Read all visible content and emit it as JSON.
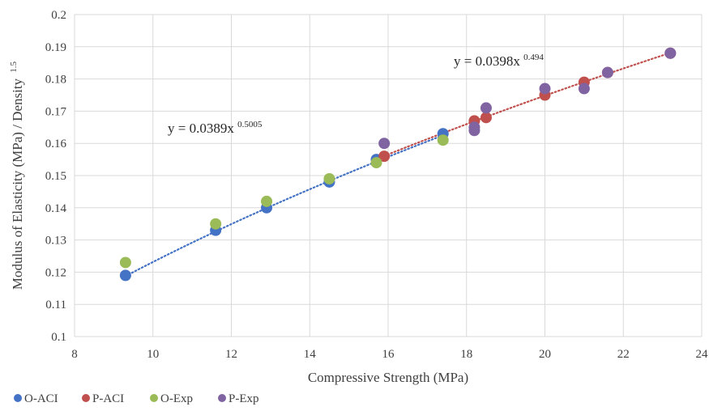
{
  "chart_data": {
    "type": "scatter",
    "xlabel": "Compressive Strength (MPa)",
    "ylabel_main": "Modulus of Elasticity (MPa) / Density",
    "ylabel_sup": "1.5",
    "xlim": [
      8,
      24
    ],
    "ylim": [
      0.1,
      0.2
    ],
    "xticks": [
      8,
      10,
      12,
      14,
      16,
      18,
      20,
      22,
      24
    ],
    "yticks": [
      0.1,
      0.11,
      0.12,
      0.13,
      0.14,
      0.15,
      0.16,
      0.17,
      0.18,
      0.19,
      0.2
    ],
    "ytick_labels": [
      "0.1",
      "0.11",
      "0.12",
      "0.13",
      "0.14",
      "0.15",
      "0.16",
      "0.17",
      "0.18",
      "0.19",
      "0.2"
    ],
    "grid": true,
    "legend_position": "bottom-left",
    "series": [
      {
        "name": "O-ACI",
        "color": "#4472c4",
        "points": [
          [
            9.3,
            0.119
          ],
          [
            11.6,
            0.133
          ],
          [
            12.9,
            0.14
          ],
          [
            14.5,
            0.148
          ],
          [
            15.7,
            0.155
          ],
          [
            17.4,
            0.163
          ]
        ]
      },
      {
        "name": "P-ACI",
        "color": "#c0504d",
        "points": [
          [
            15.9,
            0.156
          ],
          [
            18.2,
            0.167
          ],
          [
            18.5,
            0.168
          ],
          [
            20.0,
            0.175
          ],
          [
            21.0,
            0.179
          ],
          [
            21.6,
            0.182
          ],
          [
            23.2,
            0.188
          ]
        ]
      },
      {
        "name": "O-Exp",
        "color": "#9bbb59",
        "points": [
          [
            9.3,
            0.123
          ],
          [
            11.6,
            0.135
          ],
          [
            12.9,
            0.142
          ],
          [
            14.5,
            0.149
          ],
          [
            15.7,
            0.154
          ],
          [
            17.4,
            0.161
          ]
        ]
      },
      {
        "name": "P-Exp",
        "color": "#8064a2",
        "points": [
          [
            15.9,
            0.16
          ],
          [
            18.2,
            0.164
          ],
          [
            18.2,
            0.165
          ],
          [
            18.5,
            0.171
          ],
          [
            20.0,
            0.177
          ],
          [
            21.0,
            0.177
          ],
          [
            21.6,
            0.182
          ],
          [
            23.2,
            0.188
          ]
        ]
      }
    ],
    "trendlines": [
      {
        "series": "O-ACI",
        "color": "#4472c4",
        "coef": 0.0389,
        "exp": 0.5005,
        "x_range": [
          9.3,
          17.4
        ],
        "label_main": "y = 0.0389x",
        "label_sup": "0.5005"
      },
      {
        "series": "P-ACI",
        "color": "#c0504d",
        "coef": 0.0398,
        "exp": 0.494,
        "x_range": [
          15.9,
          23.2
        ],
        "label_main": "y = 0.0398x",
        "label_sup": "0.494"
      }
    ]
  }
}
